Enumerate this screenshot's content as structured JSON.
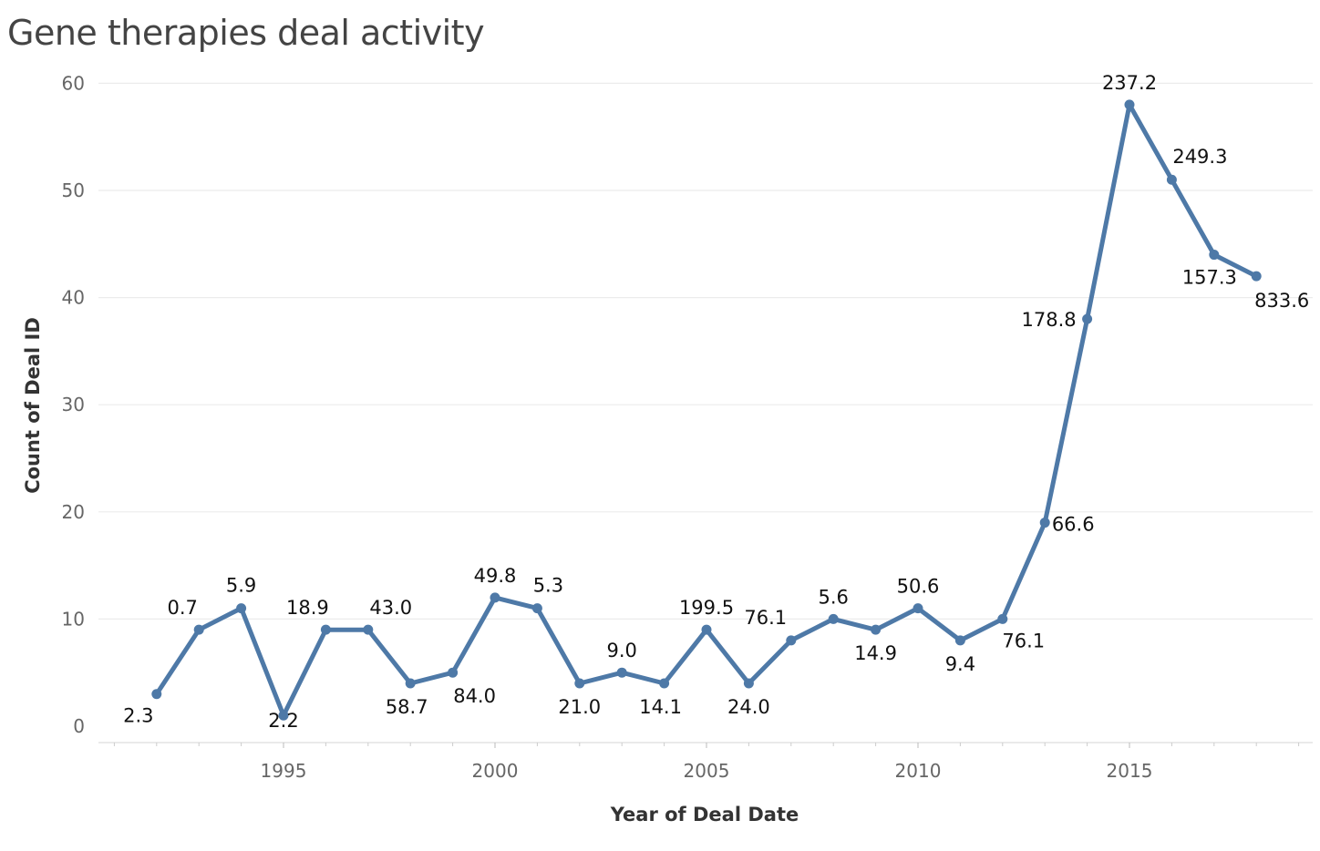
{
  "chart_data": {
    "type": "line",
    "title": "Gene therapies deal activity",
    "xlabel": "Year of Deal Date",
    "ylabel": "Count of Deal ID",
    "xlim": [
      1991,
      2019
    ],
    "ylim": [
      0,
      60
    ],
    "x_ticks": [
      1995,
      2000,
      2005,
      2010,
      2015
    ],
    "y_ticks": [
      0,
      10,
      20,
      30,
      40,
      50,
      60
    ],
    "grid": true,
    "color": "#4e79a7",
    "series": [
      {
        "points": [
          {
            "x": 1992,
            "y": 3,
            "label": "2.3"
          },
          {
            "x": 1993,
            "y": 9,
            "label": "0.7"
          },
          {
            "x": 1994,
            "y": 11,
            "label": "5.9"
          },
          {
            "x": 1995,
            "y": 1,
            "label": "2.2"
          },
          {
            "x": 1996,
            "y": 9,
            "label": "18.9"
          },
          {
            "x": 1997,
            "y": 9,
            "label": "43.0"
          },
          {
            "x": 1998,
            "y": 4,
            "label": "58.7"
          },
          {
            "x": 1999,
            "y": 5,
            "label": "84.0"
          },
          {
            "x": 2000,
            "y": 12,
            "label": "49.8"
          },
          {
            "x": 2001,
            "y": 11,
            "label": "5.3"
          },
          {
            "x": 2002,
            "y": 4,
            "label": "21.0"
          },
          {
            "x": 2003,
            "y": 5,
            "label": "9.0"
          },
          {
            "x": 2004,
            "y": 4,
            "label": "14.1"
          },
          {
            "x": 2005,
            "y": 9,
            "label": "199.5"
          },
          {
            "x": 2006,
            "y": 4,
            "label": "24.0"
          },
          {
            "x": 2007,
            "y": 8,
            "label": "76.1"
          },
          {
            "x": 2008,
            "y": 10,
            "label": "5.6"
          },
          {
            "x": 2009,
            "y": 9,
            "label": "14.9"
          },
          {
            "x": 2010,
            "y": 11,
            "label": "50.6"
          },
          {
            "x": 2011,
            "y": 8,
            "label": "9.4"
          },
          {
            "x": 2012,
            "y": 10,
            "label": "76.1"
          },
          {
            "x": 2013,
            "y": 19,
            "label": "66.6"
          },
          {
            "x": 2014,
            "y": 38,
            "label": "178.8"
          },
          {
            "x": 2015,
            "y": 58,
            "label": "237.2"
          },
          {
            "x": 2016,
            "y": 51,
            "label": "249.3"
          },
          {
            "x": 2017,
            "y": 44,
            "label": "157.3"
          },
          {
            "x": 2018,
            "y": 42,
            "label": "833.6"
          }
        ]
      }
    ]
  }
}
